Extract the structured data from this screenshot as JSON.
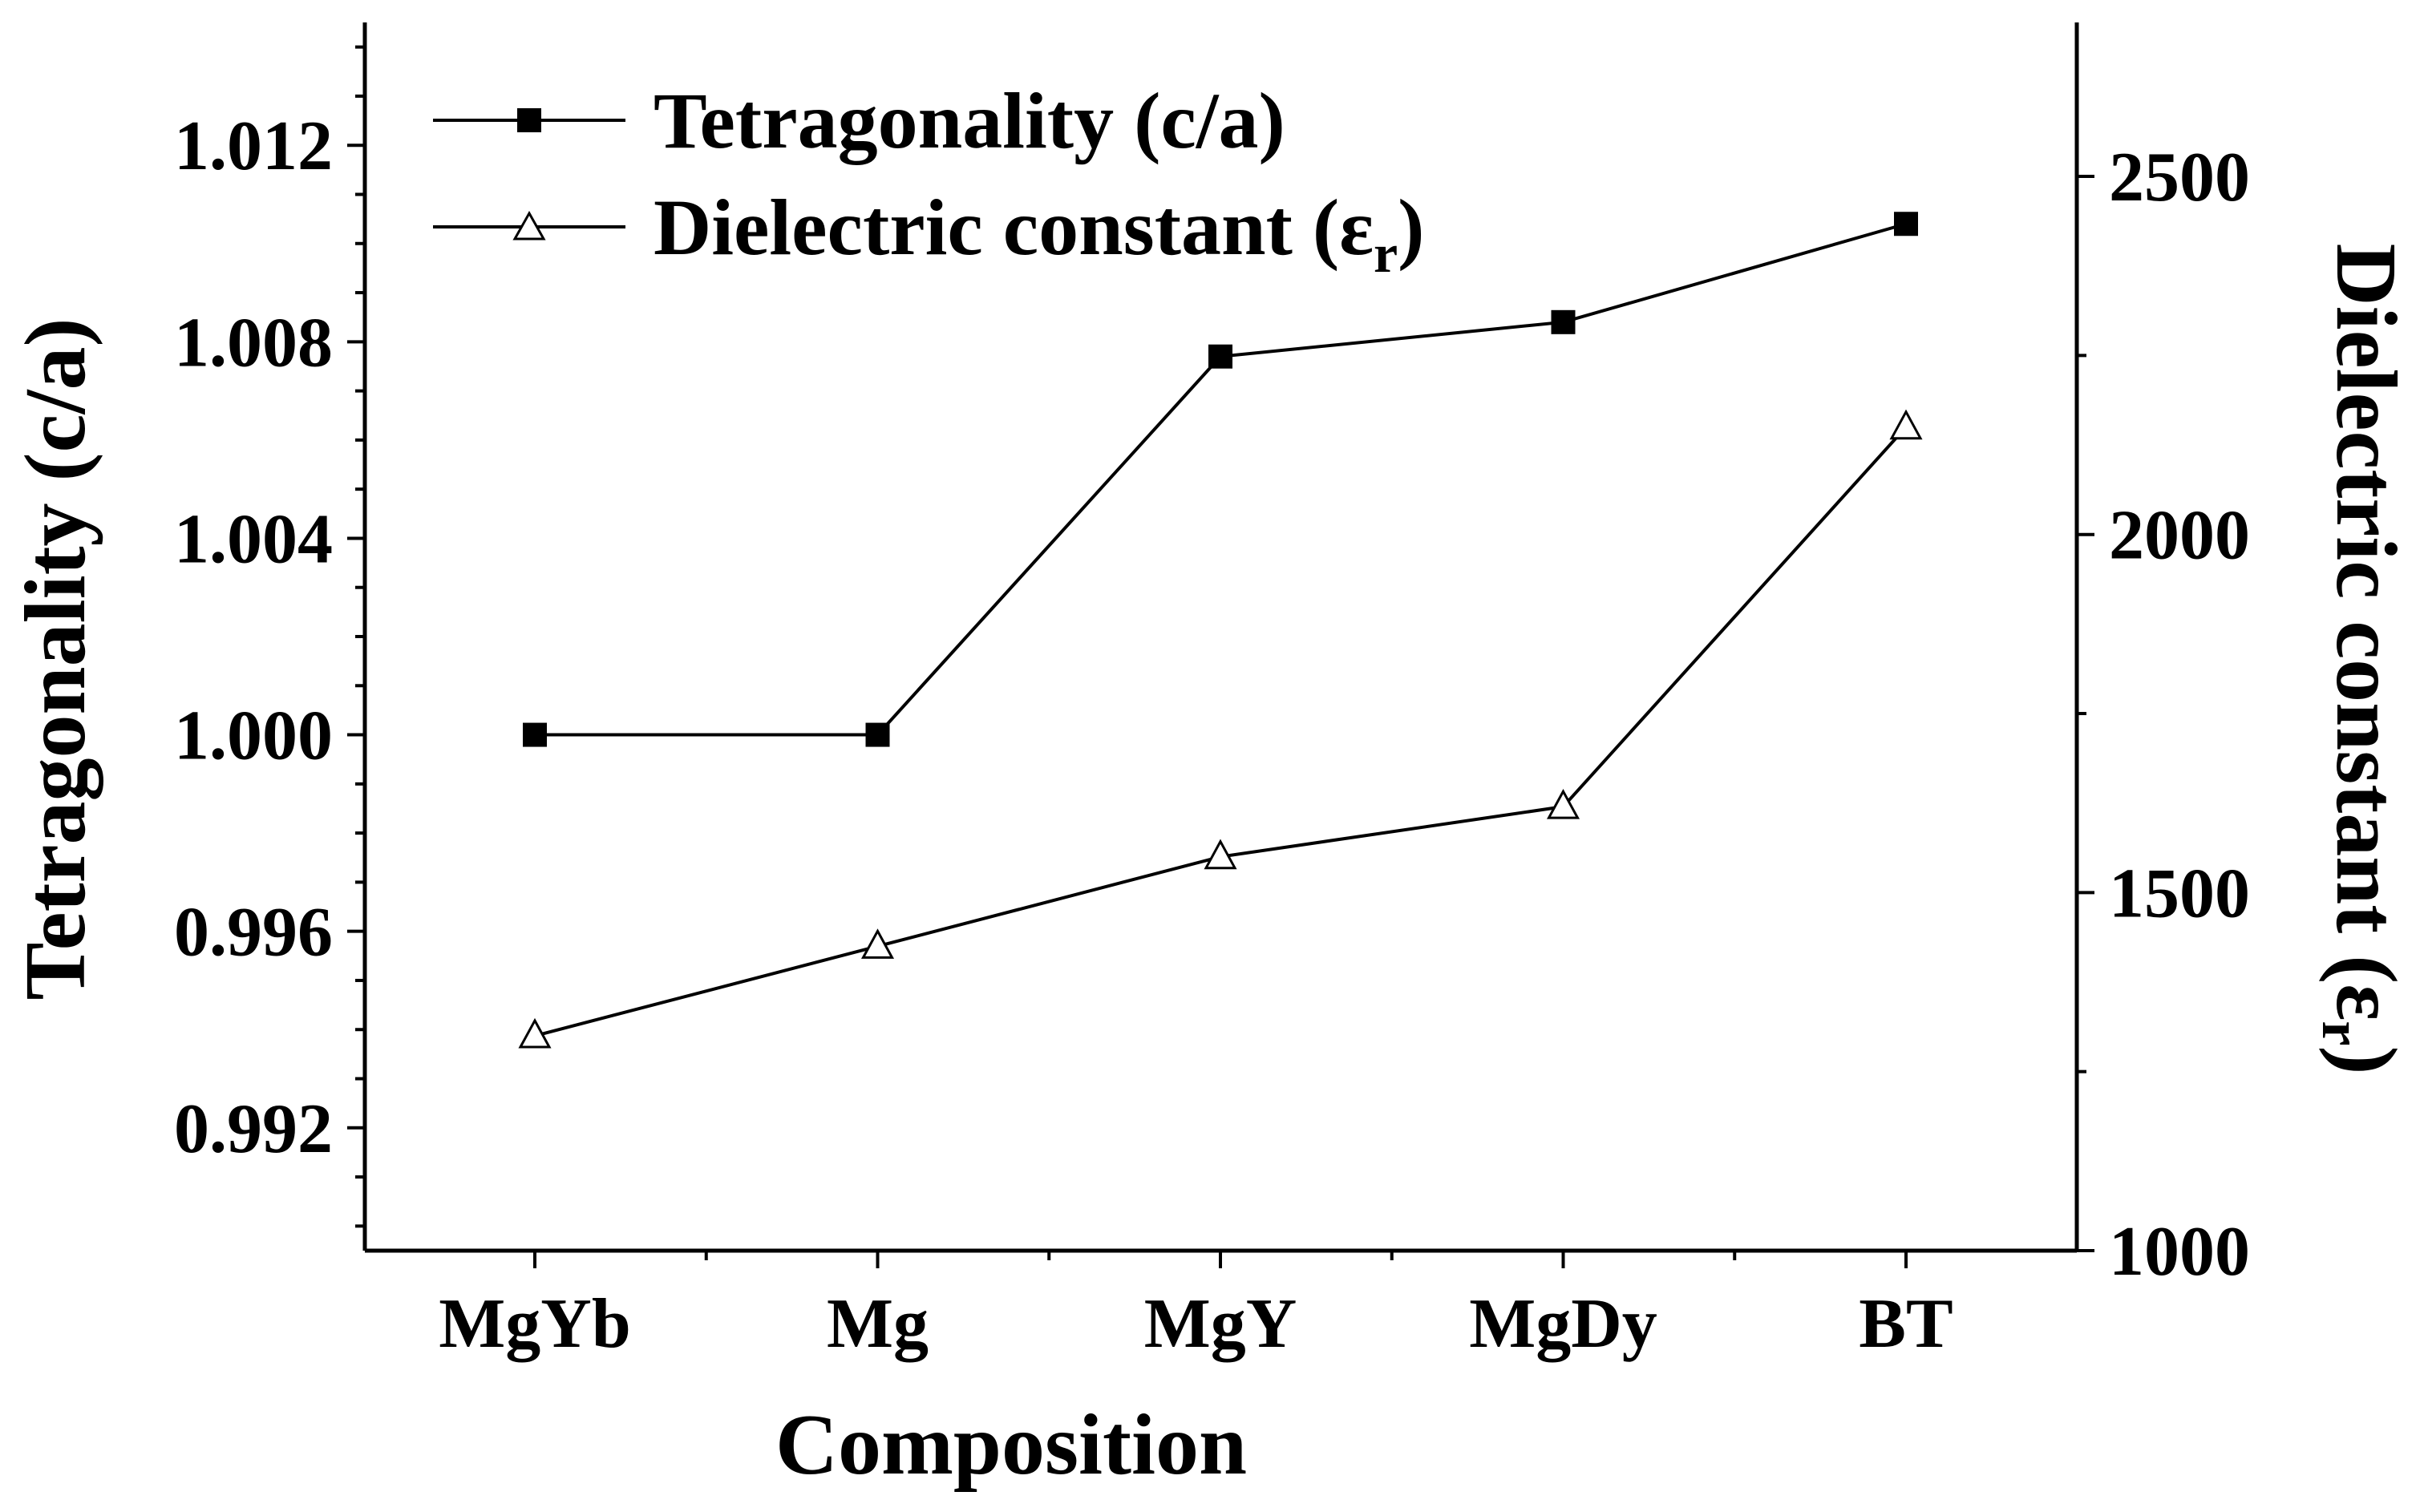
{
  "chart_data": {
    "type": "line",
    "xlabel": "Composition",
    "ylabel_left": "Tetragonality (c/a)",
    "ylabel_right_main": "Dielectric constant (ε",
    "ylabel_right_sub": "r",
    "ylabel_right_close": ")",
    "categories": [
      "MgYb",
      "Mg",
      "MgY",
      "MgDy",
      "BT"
    ],
    "y_left": {
      "range": [
        0.9895,
        1.0145
      ],
      "ticks": [
        0.992,
        0.996,
        1.0,
        1.004,
        1.008,
        1.012
      ],
      "tick_labels": [
        "0.992",
        "0.996",
        "1.000",
        "1.004",
        "1.008",
        "1.012"
      ]
    },
    "y_right": {
      "range": [
        1000,
        2715
      ],
      "ticks": [
        1000,
        1500,
        2000,
        2500
      ],
      "tick_labels": [
        "1000",
        "1500",
        "2000",
        "2500"
      ]
    },
    "series": [
      {
        "name": "Tetragonality (c/a)",
        "axis": "left",
        "marker": "filled-square",
        "values": [
          1.0,
          1.0,
          1.0077,
          1.0084,
          1.0104
        ]
      },
      {
        "name": "Dielectric constant (ε",
        "name_sub": "r",
        "name_close": ")",
        "axis": "right",
        "marker": "open-triangle",
        "values": [
          1300,
          1425,
          1550,
          1620,
          2150
        ]
      }
    ],
    "legend_position": "top-left",
    "grid": false
  }
}
